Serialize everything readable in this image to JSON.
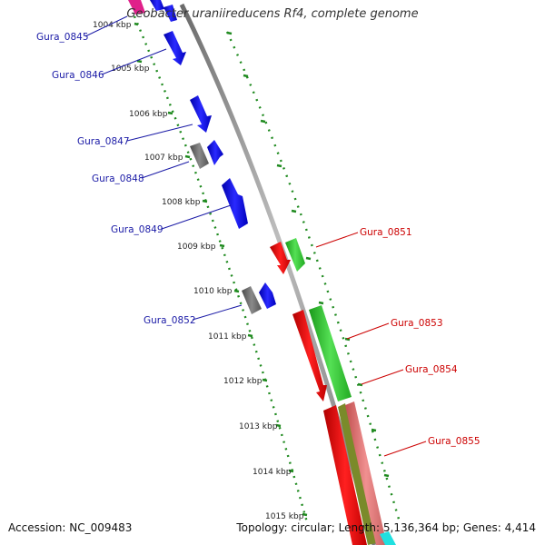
{
  "title": "Geobacter uraniireducens Rf4, complete genome",
  "footer": {
    "accession": "Accession: NC_009483",
    "summary": "Topology: circular; Length: 5,136,364 bp; Genes: 4,414"
  },
  "scale_labels": [
    "1004 kbp",
    "1005 kbp",
    "1006 kbp",
    "1007 kbp",
    "1008 kbp",
    "1009 kbp",
    "1010 kbp",
    "1011 kbp",
    "1012 kbp",
    "1013 kbp",
    "1014 kbp",
    "1015 kbp"
  ],
  "gene_labels_left": [
    "Gura_0845",
    "Gura_0846",
    "Gura_0847",
    "Gura_0848",
    "Gura_0849",
    "Gura_0852"
  ],
  "gene_labels_right": [
    "Gura_0851",
    "Gura_0853",
    "Gura_0854",
    "Gura_0855"
  ],
  "colors": {
    "left_label": "#1a1aa6",
    "right_label": "#cc0000",
    "backbone": "#8a8a8a",
    "tick": "#1f8a1f",
    "gene_blue": "#1010ee",
    "gene_gray": "#6e6e6e",
    "gene_red": "#ee1111",
    "gene_green": "#33cc33",
    "gene_pink": "#e07070",
    "gene_olive": "#7a8a2a",
    "gene_magenta": "#e0208a",
    "gene_cyan": "#20e0e0"
  }
}
